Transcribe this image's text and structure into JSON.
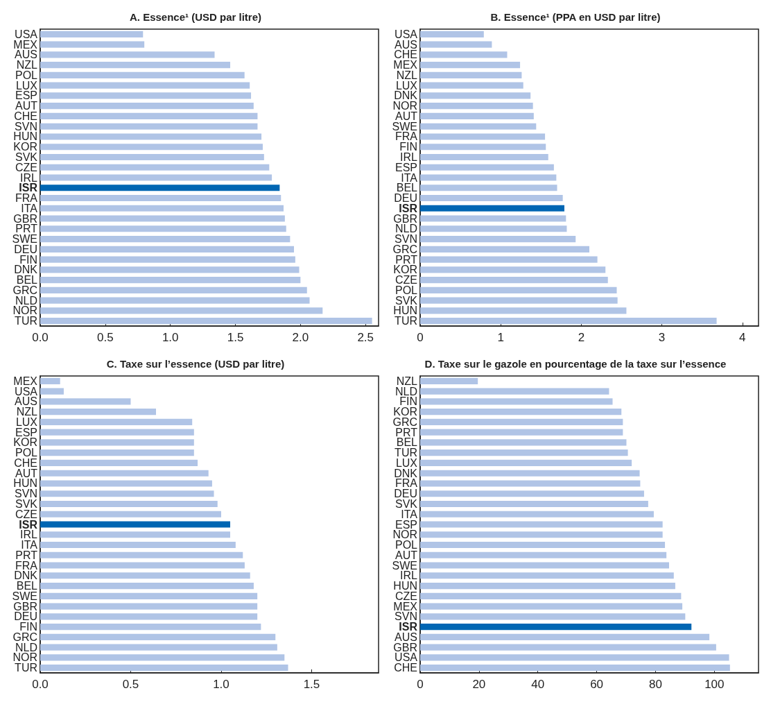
{
  "chart_data": [
    {
      "type": "bar",
      "orientation": "horizontal",
      "title": "A. Essence¹ (USD par litre)",
      "grid": false,
      "categories": [
        "USA",
        "MEX",
        "AUS",
        "NZL",
        "POL",
        "LUX",
        "ESP",
        "AUT",
        "CHE",
        "SVN",
        "HUN",
        "KOR",
        "SVK",
        "CZE",
        "IRL",
        "ISR",
        "FRA",
        "ITA",
        "GBR",
        "PRT",
        "SWE",
        "DEU",
        "FIN",
        "DNK",
        "BEL",
        "GRC",
        "NLD",
        "NOR",
        "TUR"
      ],
      "values": [
        0.79,
        0.8,
        1.34,
        1.46,
        1.57,
        1.61,
        1.62,
        1.64,
        1.67,
        1.67,
        1.7,
        1.71,
        1.72,
        1.76,
        1.78,
        1.84,
        1.85,
        1.87,
        1.88,
        1.89,
        1.92,
        1.95,
        1.96,
        1.99,
        2.0,
        2.05,
        2.07,
        2.17,
        2.55
      ],
      "colors": [
        "#b0c4e6",
        "#b0c4e6",
        "#b0c4e6",
        "#b0c4e6",
        "#b0c4e6",
        "#b0c4e6",
        "#b0c4e6",
        "#b0c4e6",
        "#b0c4e6",
        "#b0c4e6",
        "#b0c4e6",
        "#b0c4e6",
        "#b0c4e6",
        "#b0c4e6",
        "#b0c4e6",
        "#0066b3",
        "#b0c4e6",
        "#b0c4e6",
        "#b0c4e6",
        "#b0c4e6",
        "#b0c4e6",
        "#b0c4e6",
        "#b0c4e6",
        "#b0c4e6",
        "#b0c4e6",
        "#b0c4e6",
        "#b0c4e6",
        "#b0c4e6",
        "#b0c4e6"
      ],
      "xlim": [
        0,
        2.6
      ],
      "xticks": [
        {
          "value": 0,
          "label": "0.0"
        },
        0.5,
        {
          "value": 1,
          "label": "1.0"
        },
        1.5,
        {
          "value": 2,
          "label": "2.0"
        },
        2.5
      ]
    },
    {
      "type": "bar",
      "orientation": "horizontal",
      "title": "B. Essence¹ (PPA en USD par litre)",
      "grid": false,
      "categories": [
        "USA",
        "AUS",
        "CHE",
        "MEX",
        "NZL",
        "LUX",
        "DNK",
        "NOR",
        "AUT",
        "SWE",
        "FRA",
        "FIN",
        "IRL",
        "ESP",
        "ITA",
        "BEL",
        "DEU",
        "ISR",
        "GBR",
        "NLD",
        "SVN",
        "GRC",
        "PRT",
        "KOR",
        "CZE",
        "POL",
        "SVK",
        "HUN",
        "TUR"
      ],
      "values": [
        0.79,
        0.89,
        1.08,
        1.24,
        1.26,
        1.28,
        1.37,
        1.4,
        1.41,
        1.44,
        1.55,
        1.56,
        1.59,
        1.66,
        1.69,
        1.7,
        1.77,
        1.79,
        1.81,
        1.82,
        1.93,
        2.1,
        2.2,
        2.3,
        2.33,
        2.44,
        2.45,
        2.56,
        3.68
      ],
      "colors": [
        "#b0c4e6",
        "#b0c4e6",
        "#b0c4e6",
        "#b0c4e6",
        "#b0c4e6",
        "#b0c4e6",
        "#b0c4e6",
        "#b0c4e6",
        "#b0c4e6",
        "#b0c4e6",
        "#b0c4e6",
        "#b0c4e6",
        "#b0c4e6",
        "#b0c4e6",
        "#b0c4e6",
        "#b0c4e6",
        "#b0c4e6",
        "#0066b3",
        "#b0c4e6",
        "#b0c4e6",
        "#b0c4e6",
        "#b0c4e6",
        "#b0c4e6",
        "#b0c4e6",
        "#b0c4e6",
        "#b0c4e6",
        "#b0c4e6",
        "#b0c4e6",
        "#b0c4e6"
      ],
      "xlim": [
        0,
        4.2
      ],
      "xticks": [
        0,
        1,
        2,
        3,
        4
      ]
    },
    {
      "type": "bar",
      "orientation": "horizontal",
      "title": "C. Taxe sur l’essence (USD par litre)",
      "grid": false,
      "categories": [
        "MEX",
        "USA",
        "AUS",
        "NZL",
        "LUX",
        "ESP",
        "KOR",
        "POL",
        "CHE",
        "AUT",
        "HUN",
        "SVN",
        "SVK",
        "CZE",
        "ISR",
        "IRL",
        "ITA",
        "PRT",
        "FRA",
        "DNK",
        "BEL",
        "SWE",
        "GBR",
        "DEU",
        "FIN",
        "GRC",
        "NLD",
        "NOR",
        "TUR"
      ],
      "values": [
        0.11,
        0.13,
        0.5,
        0.64,
        0.84,
        0.85,
        0.85,
        0.85,
        0.87,
        0.93,
        0.95,
        0.96,
        0.98,
        1.0,
        1.05,
        1.05,
        1.08,
        1.12,
        1.13,
        1.16,
        1.18,
        1.2,
        1.2,
        1.2,
        1.22,
        1.3,
        1.31,
        1.35,
        1.37
      ],
      "colors": [
        "#b0c4e6",
        "#b0c4e6",
        "#b0c4e6",
        "#b0c4e6",
        "#b0c4e6",
        "#b0c4e6",
        "#b0c4e6",
        "#b0c4e6",
        "#b0c4e6",
        "#b0c4e6",
        "#b0c4e6",
        "#b0c4e6",
        "#b0c4e6",
        "#b0c4e6",
        "#0066b3",
        "#b0c4e6",
        "#b0c4e6",
        "#b0c4e6",
        "#b0c4e6",
        "#b0c4e6",
        "#b0c4e6",
        "#b0c4e6",
        "#b0c4e6",
        "#b0c4e6",
        "#b0c4e6",
        "#b0c4e6",
        "#b0c4e6",
        "#b0c4e6",
        "#b0c4e6"
      ],
      "xlim": [
        0,
        1.87
      ],
      "xticks": [
        {
          "value": 0,
          "label": "0.0"
        },
        0.5,
        {
          "value": 1,
          "label": "1.0"
        },
        1.5
      ]
    },
    {
      "type": "bar",
      "orientation": "horizontal",
      "title": "D. Taxe sur le gazole en pourcentage de la taxe sur l’essence",
      "grid": false,
      "categories": [
        "NZL",
        "NLD",
        "FIN",
        "KOR",
        "GRC",
        "PRT",
        "BEL",
        "TUR",
        "LUX",
        "DNK",
        "FRA",
        "DEU",
        "SVK",
        "ITA",
        "ESP",
        "NOR",
        "POL",
        "AUT",
        "SWE",
        "IRL",
        "HUN",
        "CZE",
        "MEX",
        "SVN",
        "ISR",
        "AUS",
        "GBR",
        "USA",
        "CHE"
      ],
      "values": [
        19.6,
        64.2,
        65.4,
        68.4,
        68.9,
        68.9,
        70.1,
        70.6,
        71.9,
        74.6,
        74.8,
        76.1,
        77.5,
        79.4,
        82.4,
        82.4,
        83.2,
        83.7,
        84.6,
        86.2,
        86.7,
        88.7,
        89.1,
        90.1,
        92.2,
        98.3,
        100.6,
        105,
        105.3
      ],
      "colors": [
        "#b0c4e6",
        "#b0c4e6",
        "#b0c4e6",
        "#b0c4e6",
        "#b0c4e6",
        "#b0c4e6",
        "#b0c4e6",
        "#b0c4e6",
        "#b0c4e6",
        "#b0c4e6",
        "#b0c4e6",
        "#b0c4e6",
        "#b0c4e6",
        "#b0c4e6",
        "#b0c4e6",
        "#b0c4e6",
        "#b0c4e6",
        "#b0c4e6",
        "#b0c4e6",
        "#b0c4e6",
        "#b0c4e6",
        "#b0c4e6",
        "#b0c4e6",
        "#b0c4e6",
        "#0066b3",
        "#b0c4e6",
        "#b0c4e6",
        "#b0c4e6",
        "#b0c4e6"
      ],
      "xlim": [
        0,
        115
      ],
      "xticks": [
        0,
        20,
        40,
        60,
        80,
        100
      ]
    }
  ]
}
